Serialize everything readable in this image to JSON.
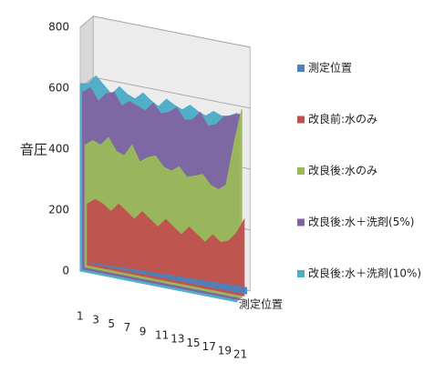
{
  "chart_data": {
    "type": "area3d",
    "ylabel": "音圧",
    "depth_label": "測定位置",
    "categories": [
      "1",
      null,
      "3",
      null,
      "5",
      null,
      "7",
      null,
      "9",
      null,
      "11",
      null,
      "13",
      null,
      "15",
      null,
      "17",
      null,
      "19",
      null,
      "21"
    ],
    "ylim": [
      0,
      800
    ],
    "yticks": [
      0,
      200,
      400,
      600,
      800
    ],
    "grid": true,
    "series": [
      {
        "name": "測定位置",
        "color": "#4f81bd",
        "values": [
          1,
          2,
          3,
          4,
          5,
          6,
          7,
          8,
          9,
          10,
          11,
          12,
          13,
          14,
          15,
          16,
          17,
          18,
          19,
          20,
          21
        ]
      },
      {
        "name": "改良前:水のみ",
        "color": "#c0504d",
        "values": [
          200,
          220,
          210,
          190,
          220,
          200,
          180,
          210,
          190,
          170,
          200,
          180,
          160,
          190,
          170,
          150,
          180,
          160,
          170,
          200,
          250
        ]
      },
      {
        "name": "改良後:水のみ",
        "color": "#9bbb59",
        "values": [
          400,
          420,
          410,
          440,
          400,
          390,
          430,
          380,
          400,
          410,
          380,
          370,
          390,
          360,
          370,
          380,
          350,
          340,
          360,
          500,
          620
        ]
      },
      {
        "name": "改良後:水＋洗剤(5%)",
        "color": "#8064a2",
        "values": [
          580,
          600,
          560,
          590,
          600,
          560,
          580,
          570,
          560,
          590,
          560,
          570,
          590,
          555,
          560,
          590,
          550,
          560,
          590,
          600,
          610
        ]
      },
      {
        "name": "改良後:水＋洗剤(10%)",
        "color": "#4bacc6",
        "values": [
          615,
          620,
          650,
          625,
          600,
          630,
          610,
          600,
          625,
          605,
          590,
          620,
          605,
          595,
          615,
          600,
          590,
          610,
          600,
          605,
          620
        ]
      }
    ]
  }
}
